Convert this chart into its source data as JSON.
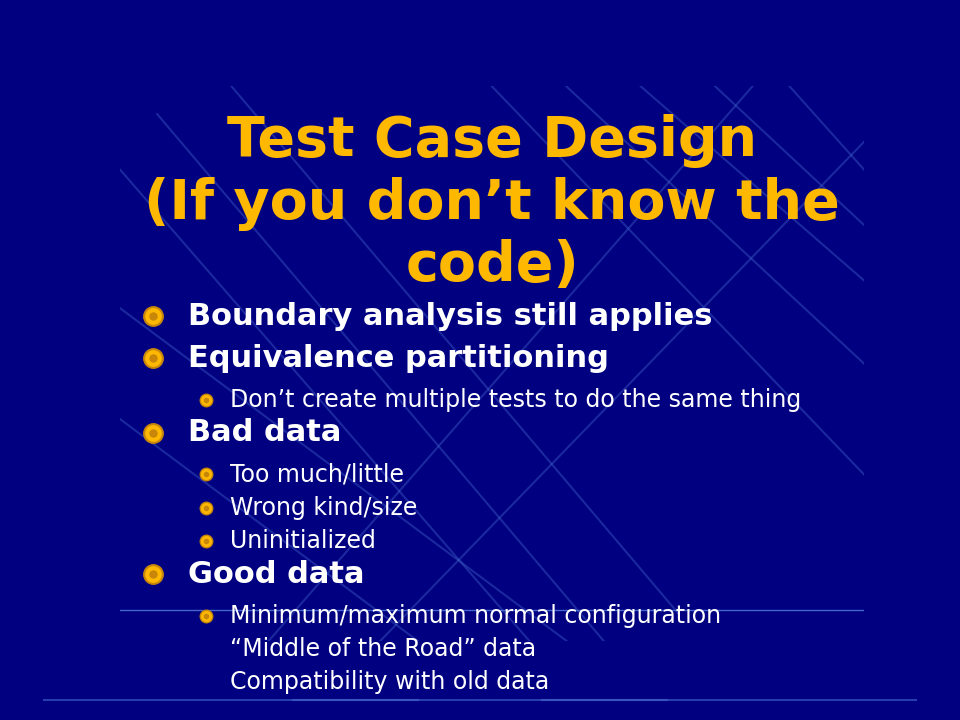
{
  "title_text": "Test Case Design\n(If you don’t know the\ncode)",
  "title_color": "#FFB800",
  "background_color": "#000080",
  "bullet_color": "#FFFFFF",
  "level1_fontsize": 22,
  "level2_fontsize": 17,
  "title_fontsize": 40,
  "figsize": [
    9.6,
    7.2
  ],
  "dpi": 100,
  "line_color": "#4466cc",
  "bottom_bar_color": "#000033",
  "bullet_outer_color": "#c8860a",
  "bullet_inner_color": "#FFB800",
  "content": [
    [
      1,
      "Boundary analysis still applies"
    ],
    [
      1,
      "Equivalence partitioning"
    ],
    [
      2,
      "Don’t create multiple tests to do the same thing"
    ],
    [
      1,
      "Bad data"
    ],
    [
      2,
      "Too much/little"
    ],
    [
      2,
      "Wrong kind/size"
    ],
    [
      2,
      "Uninitialized"
    ],
    [
      1,
      "Good data"
    ],
    [
      2,
      "Minimum/maximum normal configuration"
    ],
    [
      2,
      "“Middle of the Road” data"
    ],
    [
      2,
      "Compatibility with old data"
    ]
  ],
  "diag_lines": [
    [
      0.0,
      0.85,
      0.55,
      0.0
    ],
    [
      0.05,
      0.95,
      0.65,
      0.0
    ],
    [
      0.15,
      1.0,
      0.75,
      0.05
    ],
    [
      0.5,
      1.0,
      1.0,
      0.3
    ],
    [
      0.6,
      1.0,
      1.0,
      0.5
    ],
    [
      0.7,
      1.0,
      1.0,
      0.65
    ],
    [
      0.35,
      0.0,
      1.0,
      0.9
    ],
    [
      0.2,
      0.0,
      0.85,
      1.0
    ],
    [
      0.0,
      0.4,
      0.4,
      0.0
    ],
    [
      0.0,
      0.6,
      0.6,
      0.0
    ],
    [
      0.8,
      1.0,
      1.0,
      0.75
    ],
    [
      0.9,
      1.0,
      1.0,
      0.85
    ]
  ]
}
